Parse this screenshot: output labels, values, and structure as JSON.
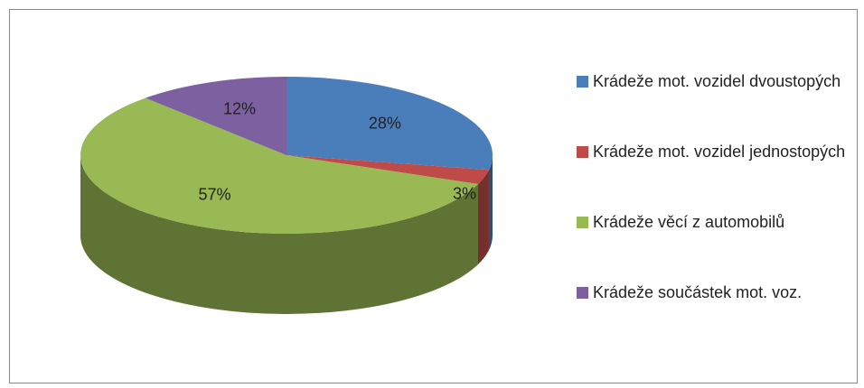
{
  "chart_data": {
    "type": "pie",
    "categories": [
      "Krádeže mot. vozidel dvoustopých",
      "Krádeže mot. vozidel jednostopých",
      "Krádeže věcí z automobilů",
      "Krádeže součástek mot. voz."
    ],
    "values": [
      28,
      3,
      57,
      12
    ],
    "value_labels": [
      "28%",
      "3%",
      "57%",
      "12%"
    ],
    "colors": [
      "#4a7ebb",
      "#be4b48",
      "#98b954",
      "#7d60a0"
    ],
    "legend": "right"
  }
}
